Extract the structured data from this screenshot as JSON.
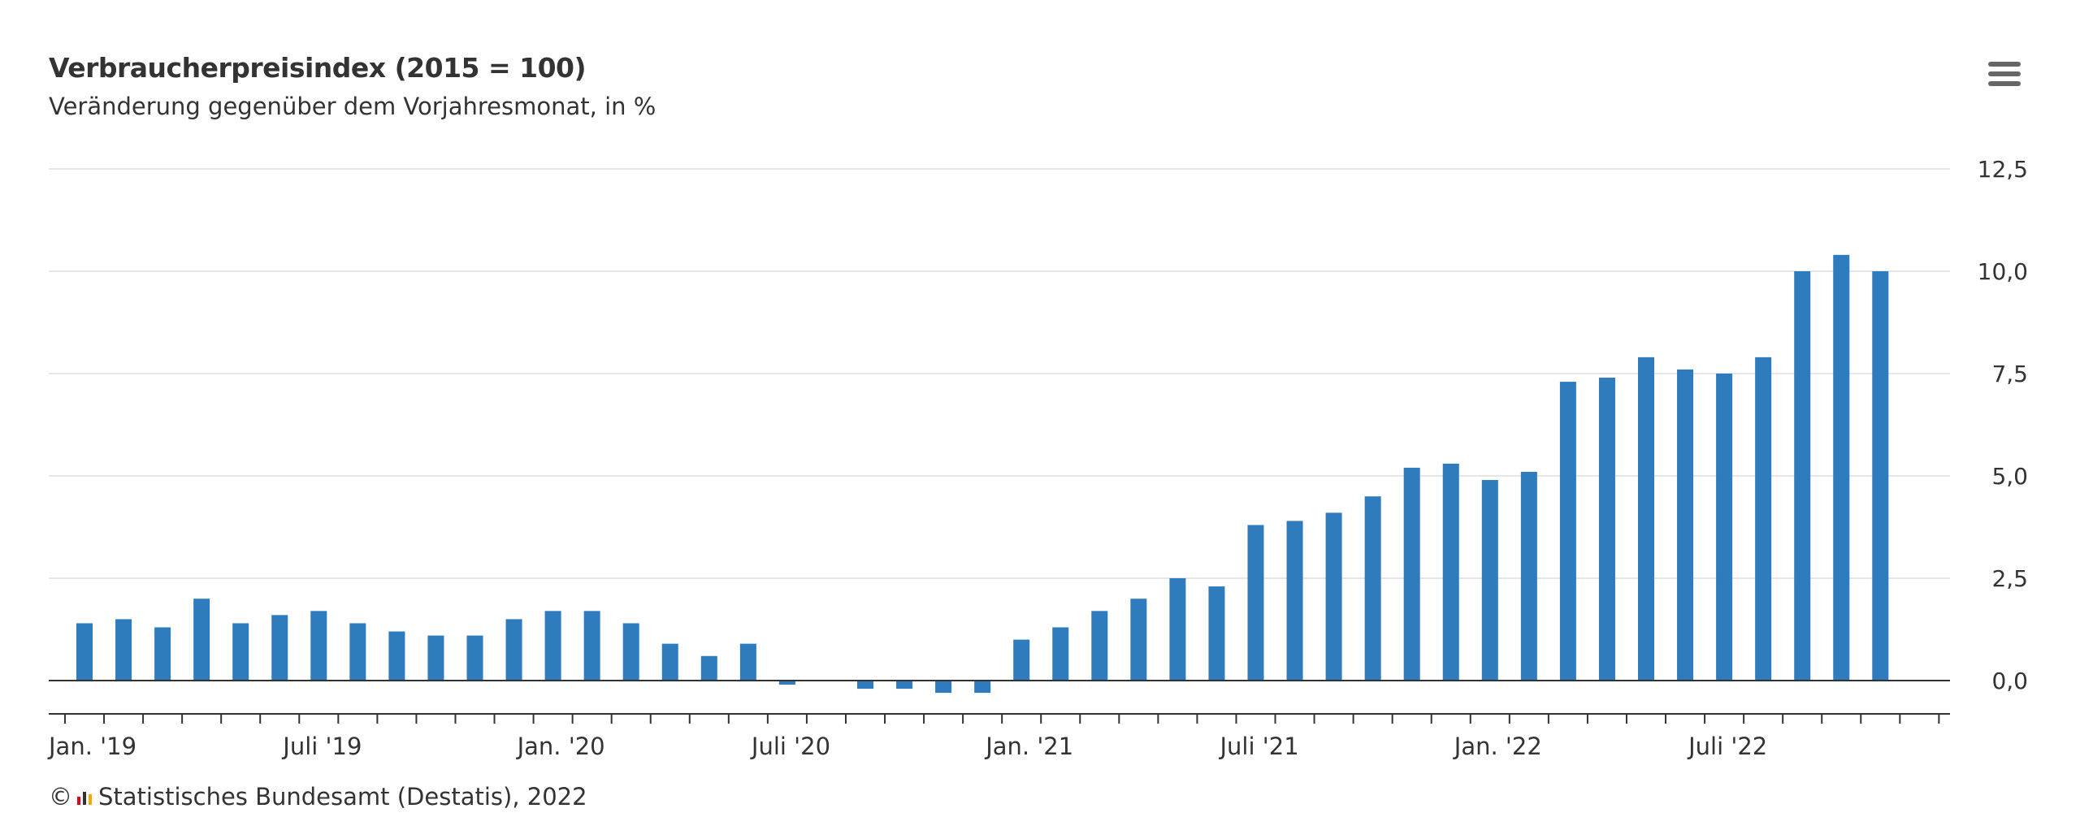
{
  "header": {
    "title": "Verbraucherpreisindex (2015 = 100)",
    "subtitle": "Veränderung gegenüber dem Vorjahresmonat, in %"
  },
  "menu": {
    "icon": "hamburger-menu-icon"
  },
  "credits": {
    "copyright_symbol": "©",
    "logo_icon": "destatis-logo-icon",
    "text": "Statistisches Bundesamt (Destatis), 2022"
  },
  "colors": {
    "bar": "#2e7bbd",
    "grid": "#e6e6e6",
    "axis": "#333333"
  },
  "chart_data": {
    "type": "bar",
    "title": "Verbraucherpreisindex (2015 = 100)",
    "subtitle": "Veränderung gegenüber dem Vorjahresmonat, in %",
    "ylim": [
      -0.5,
      12.5
    ],
    "yticks": [
      "12,5",
      "10,0",
      "7,5",
      "5,0",
      "2,5",
      "0,0"
    ],
    "ytick_values": [
      12.5,
      10.0,
      7.5,
      5.0,
      2.5,
      0.0
    ],
    "y_axis_side": "right",
    "grid": true,
    "legend": "none",
    "x_labels": [
      {
        "month_index": 0,
        "label": "Jan. '19"
      },
      {
        "month_index": 6,
        "label": "Juli '19"
      },
      {
        "month_index": 12,
        "label": "Jan. '20"
      },
      {
        "month_index": 18,
        "label": "Juli '20"
      },
      {
        "month_index": 24,
        "label": "Jan. '21"
      },
      {
        "month_index": 30,
        "label": "Juli '21"
      },
      {
        "month_index": 36,
        "label": "Jan. '22"
      },
      {
        "month_index": 42,
        "label": "Juli '22"
      }
    ],
    "series": [
      {
        "values": [
          1.4,
          1.5,
          1.3,
          2.0,
          1.4,
          1.6,
          1.7,
          1.4,
          1.2,
          1.1,
          1.1,
          1.5,
          1.7,
          1.7,
          1.4,
          0.9,
          0.6,
          0.9,
          -0.1,
          0.0,
          -0.2,
          -0.2,
          -0.3,
          -0.3,
          1.0,
          1.3,
          1.7,
          2.0,
          2.5,
          2.3,
          3.8,
          3.9,
          4.1,
          4.5,
          5.2,
          5.3,
          4.9,
          5.1,
          7.3,
          7.4,
          7.9,
          7.6,
          7.5,
          7.9,
          10.0,
          10.4,
          10.0
        ]
      }
    ]
  }
}
